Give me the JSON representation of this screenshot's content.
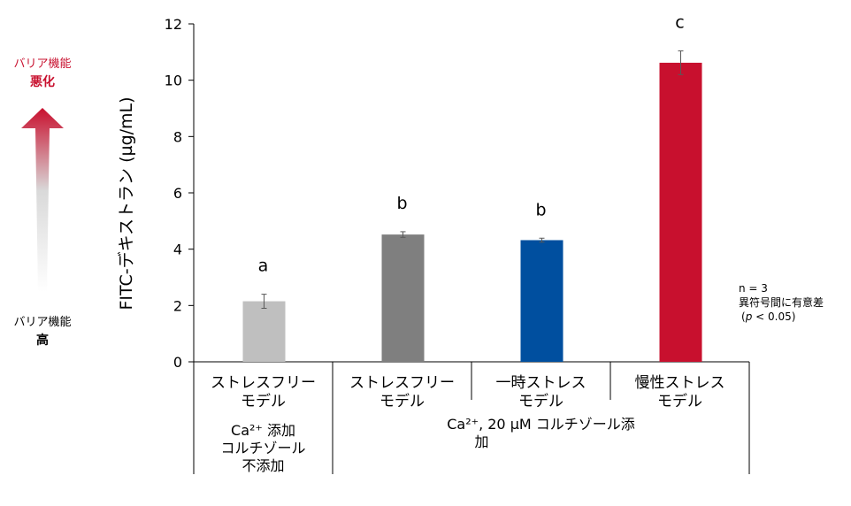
{
  "indicator": {
    "top_label_line1": "バリア機能",
    "top_label_line2": "悪化",
    "bottom_label_line1": "バリア機能",
    "bottom_label_line2": "高",
    "arrow_color_top": "#c8102e",
    "arrow_color_bottom": "#ffffff"
  },
  "note": {
    "line1": "n = 3",
    "line2": "異符号間に有意差",
    "line3_prefix": "(",
    "line3_p": "p",
    "line3_suffix": " < 0.05)"
  },
  "chart_data": {
    "type": "bar",
    "ylabel": "FITC-デキストラン (µg/mL)",
    "ylim": [
      0,
      12
    ],
    "yticks": [
      0,
      2,
      4,
      6,
      8,
      10,
      12
    ],
    "grid": false,
    "categories": [
      "ストレスフリーモデル",
      "ストレスフリーモデル",
      "一時ストレスモデル",
      "慢性ストレスモデル"
    ],
    "category_lines": [
      [
        "ストレスフリー",
        "モデル"
      ],
      [
        "ストレスフリー",
        "モデル"
      ],
      [
        "一時ストレス",
        "モデル"
      ],
      [
        "慢性ストレス",
        "モデル"
      ]
    ],
    "values": [
      2.15,
      4.52,
      4.32,
      10.62
    ],
    "errors": [
      0.25,
      0.1,
      0.07,
      0.42
    ],
    "significance": [
      "a",
      "b",
      "b",
      "c"
    ],
    "colors": [
      "#bfbfbf",
      "#7f7f7f",
      "#004f9f",
      "#c8102e"
    ],
    "groups": [
      {
        "lines": [
          "Ca²⁺ 添加",
          "コルチゾール",
          "不添加"
        ]
      },
      {
        "lines": [
          "Ca²⁺, 20 µM コルチゾール添",
          "加"
        ]
      }
    ]
  }
}
